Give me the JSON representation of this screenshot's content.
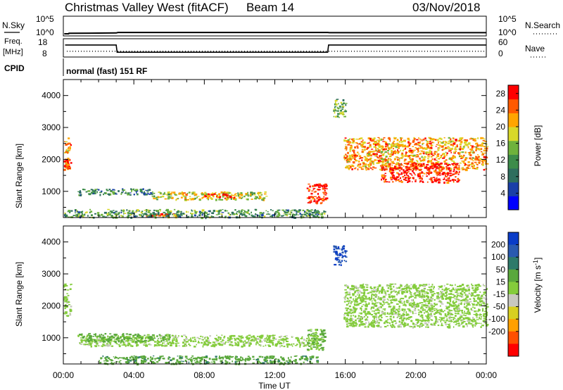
{
  "header": {
    "title": "Christmas Valley West (fitACF)",
    "beam": "Beam 14",
    "date": "03/Nov/2018"
  },
  "noise_panel": {
    "left_label": "N.Sky",
    "left_ticks": [
      "10^5",
      "10^0"
    ],
    "right_label": "N.Search",
    "right_ticks": [
      "10^5",
      "10^0"
    ]
  },
  "freq_panel": {
    "left_label_1": "Freq.",
    "left_label_2": "[MHz]",
    "left_ticks": [
      "18",
      "8"
    ],
    "right_label": "Nave",
    "right_ticks": [
      "60",
      "0"
    ]
  },
  "cpid": {
    "label": "CPID",
    "value": "normal (fast) 151 RF"
  },
  "x_axis": {
    "label": "Time UT",
    "ticks": [
      "00:00",
      "04:00",
      "08:00",
      "12:00",
      "16:00",
      "20:00",
      "00:00"
    ]
  },
  "power_panel": {
    "ylabel": "Slant Range [km]",
    "yticks": [
      "4000",
      "3000",
      "2000",
      "1000"
    ],
    "colorbar_label": "Power [dB]",
    "colorbar_ticks": [
      "28",
      "24",
      "20",
      "16",
      "12",
      "8",
      "4"
    ],
    "colors": [
      "#0000ff",
      "#1a3fa8",
      "#2e6e5e",
      "#3d8c4a",
      "#6fb23c",
      "#d8d82a",
      "#ffa500",
      "#ff5a00",
      "#ff0000"
    ]
  },
  "velocity_panel": {
    "ylabel": "Slant Range [km]",
    "yticks": [
      "4000",
      "3000",
      "2000",
      "1000"
    ],
    "colorbar_label": "Velocity [m s",
    "colorbar_unit_sup": "-1",
    "colorbar_ticks": [
      "200",
      "100",
      "50",
      "15",
      "-15",
      "-50",
      "-100",
      "-200"
    ],
    "colors": [
      "#0a3cc8",
      "#2a5ab0",
      "#2e7a6a",
      "#5aa83c",
      "#84cc3c",
      "#c8c8c0",
      "#d8d020",
      "#ffa000",
      "#ff5000",
      "#ff0000"
    ]
  },
  "chart_data": [
    {
      "type": "line",
      "title": "N.Sky / N.Search",
      "x_range_hours": [
        0,
        24
      ],
      "ylim_log10": [
        0,
        5
      ],
      "series": [
        {
          "name": "N.Sky",
          "x": [
            0.05,
            0.3,
            0.32,
            3.0,
            3.1,
            15.0,
            15.1,
            24
          ],
          "y_log10": [
            0.2,
            0.2,
            0.35,
            0.45,
            0.6,
            0.6,
            0.55,
            0.55
          ]
        }
      ]
    },
    {
      "type": "line",
      "title": "Freq. / Nave",
      "x_range_hours": [
        0,
        24
      ],
      "ylim": [
        8,
        18
      ],
      "series": [
        {
          "name": "Freq.",
          "x": [
            0.1,
            0.3,
            3.0,
            3.05,
            15.0,
            15.05,
            24
          ],
          "y": [
            14.7,
            14.7,
            14.7,
            10.4,
            10.4,
            14.7,
            14.7
          ]
        },
        {
          "name": "Nave",
          "x": [
            0.2,
            24
          ],
          "y": [
            11,
            11
          ]
        }
      ]
    },
    {
      "type": "heatmap",
      "title": "Power [dB]",
      "x_range_hours": [
        0,
        24
      ],
      "ylim_km": [
        180,
        4500
      ],
      "colorbar_range": [
        0,
        30
      ],
      "regions": [
        {
          "t0": 0.0,
          "t1": 0.4,
          "r0": 1700,
          "r1": 2700,
          "power_dB": 22
        },
        {
          "t0": 0.0,
          "t1": 0.3,
          "r0": 1700,
          "r1": 2000,
          "power_dB": 28
        },
        {
          "t0": 0.8,
          "t1": 5.0,
          "r0": 900,
          "r1": 1100,
          "power_dB": 10
        },
        {
          "t0": 5.0,
          "t1": 11.5,
          "r0": 750,
          "r1": 1000,
          "power_dB": 18
        },
        {
          "t0": 8.0,
          "t1": 10.0,
          "r0": 800,
          "r1": 950,
          "power_dB": 26
        },
        {
          "t0": 13.8,
          "t1": 14.9,
          "r0": 650,
          "r1": 1250,
          "power_dB": 28
        },
        {
          "t0": 4.5,
          "t1": 6.5,
          "r0": 250,
          "r1": 320,
          "power_dB": 27
        },
        {
          "t0": 0.0,
          "t1": 14.8,
          "r0": 200,
          "r1": 450,
          "power_dB": 12
        },
        {
          "t0": 15.3,
          "t1": 16.0,
          "r0": 3300,
          "r1": 3900,
          "power_dB": 14
        },
        {
          "t0": 15.9,
          "t1": 24.0,
          "r0": 1700,
          "r1": 2700,
          "power_dB": 22
        },
        {
          "t0": 18.0,
          "t1": 22.5,
          "r0": 1300,
          "r1": 1900,
          "power_dB": 28
        }
      ]
    },
    {
      "type": "heatmap",
      "title": "Velocity [m s-1]",
      "x_range_hours": [
        0,
        24
      ],
      "ylim_km": [
        180,
        4500
      ],
      "colorbar_range": [
        -250,
        250
      ],
      "regions": [
        {
          "t0": 0.0,
          "t1": 0.4,
          "r0": 1700,
          "r1": 2700,
          "velocity": 0
        },
        {
          "t0": 0.8,
          "t1": 14.5,
          "r0": 750,
          "r1": 1100,
          "velocity": 0
        },
        {
          "t0": 0.8,
          "t1": 6.0,
          "r0": 900,
          "r1": 1150,
          "velocity": 30
        },
        {
          "t0": 2.0,
          "t1": 14.5,
          "r0": 200,
          "r1": 450,
          "velocity": 35
        },
        {
          "t0": 13.8,
          "t1": 14.8,
          "r0": 650,
          "r1": 1300,
          "velocity": 20
        },
        {
          "t0": 15.3,
          "t1": 16.0,
          "r0": 3300,
          "r1": 3900,
          "velocity": 200
        },
        {
          "t0": 15.9,
          "t1": 24.0,
          "r0": 1350,
          "r1": 2700,
          "velocity": 0
        }
      ]
    }
  ]
}
